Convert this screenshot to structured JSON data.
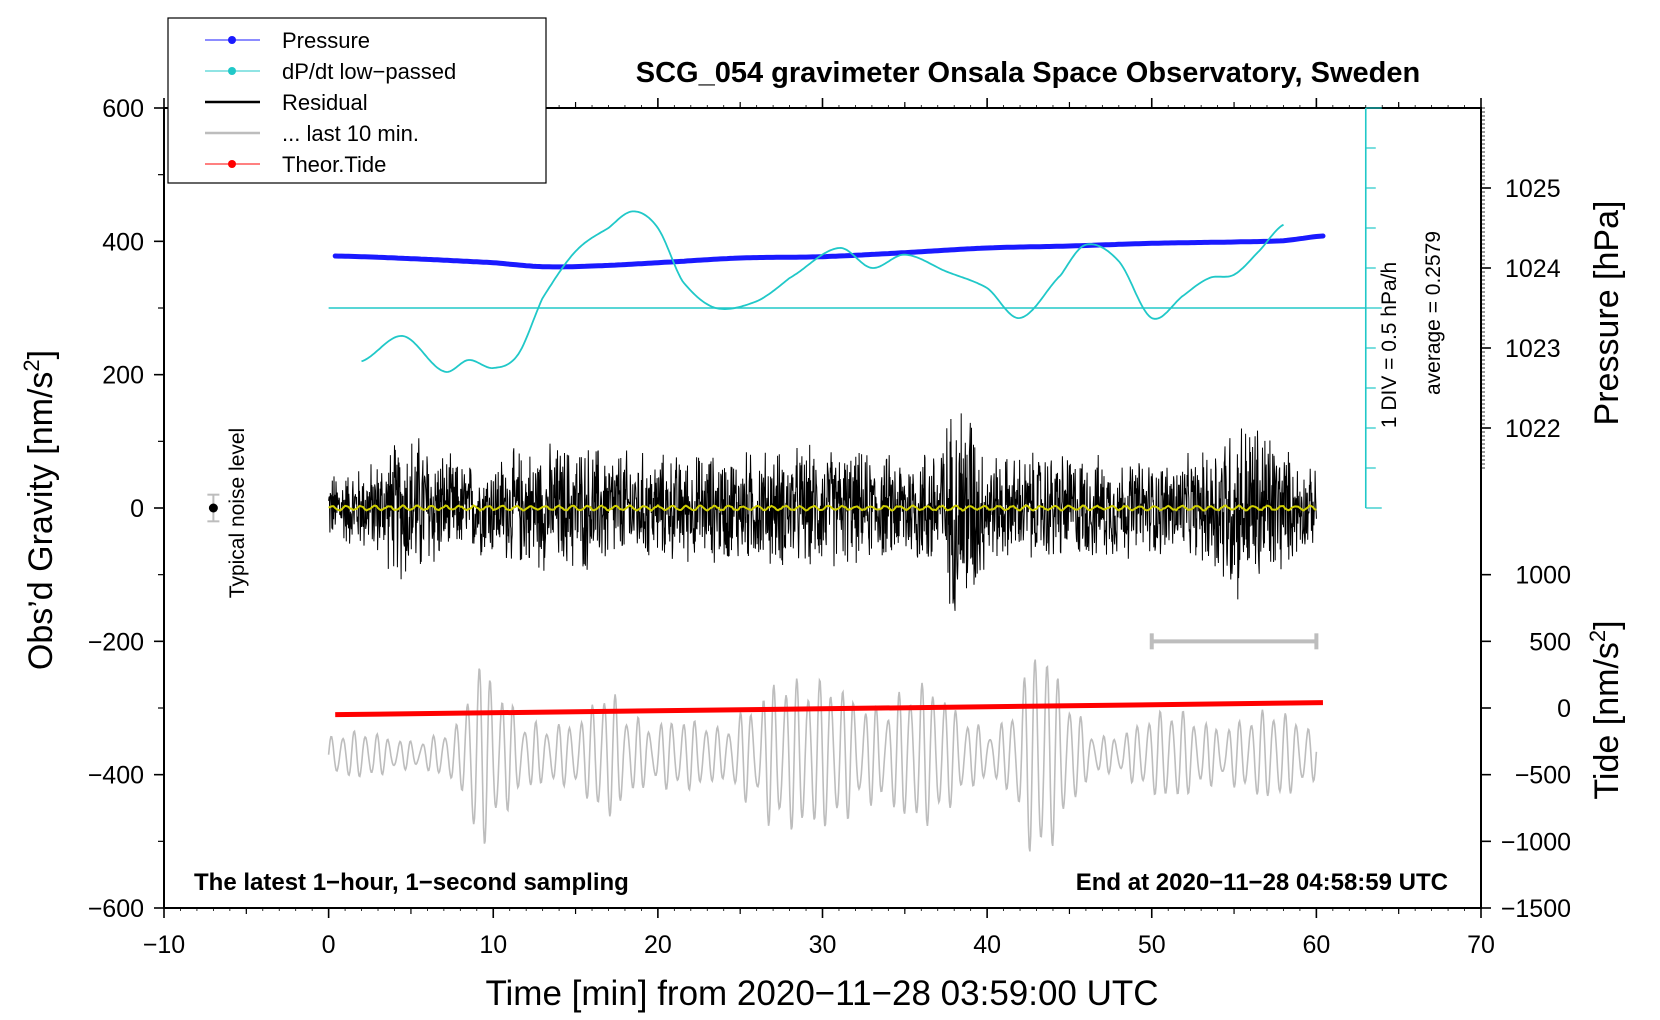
{
  "chart_data": {
    "type": "line",
    "title": "SCG_054 gravimeter Onsala Space Observatory, Sweden",
    "xlabel": "Time [min] from 2020−11−28 03:59:00 UTC",
    "ylabel_left": "Obs’d Gravity [nm/s",
    "ylabel_left_sup": "2",
    "ylabel_left_close": "]",
    "ylabel_pressure": "Pressure [hPa]",
    "ylabel_tide": "Tide [nm/s",
    "ylabel_tide_sup": "2",
    "ylabel_tide_close": "]",
    "xlim": [
      -10,
      70
    ],
    "ylim_left": [
      -600,
      600
    ],
    "x_ticks": [
      -10,
      0,
      10,
      20,
      30,
      40,
      50,
      60,
      70
    ],
    "x_tick_labels": [
      "−10",
      "0",
      "10",
      "20",
      "30",
      "40",
      "50",
      "60",
      "70"
    ],
    "y_ticks_left": [
      -600,
      -400,
      -200,
      0,
      200,
      400,
      600
    ],
    "y_tick_labels_left": [
      "−600",
      "−400",
      "−200",
      "0",
      "200",
      "400",
      "600"
    ],
    "pressure_axis": {
      "ticks": [
        1022,
        1023,
        1024,
        1025
      ],
      "tick_labels": [
        "1022",
        "1023",
        "1024",
        "1025"
      ],
      "gravity_equiv": [
        120,
        240,
        360,
        480
      ]
    },
    "tide_axis": {
      "ticks": [
        -1500,
        -1000,
        -500,
        0,
        500,
        1000
      ],
      "tick_labels": [
        "−1500",
        "−1000",
        "−500",
        "0",
        "500",
        "1000"
      ],
      "gravity_equiv": [
        -600,
        -500,
        -400,
        -300,
        -200,
        -100
      ]
    },
    "legend": {
      "placement": "top-left",
      "entries": [
        {
          "label": "Pressure",
          "color": "#1a1aff",
          "marker": "dot"
        },
        {
          "label": "dP/dt low−passed",
          "color": "#20c8c8",
          "marker": "dot"
        },
        {
          "label": "Residual",
          "color": "#000000",
          "marker": "none"
        },
        {
          "label": "... last 10 min.",
          "color": "#bdbdbd",
          "marker": "none"
        },
        {
          "label": "Theor.Tide",
          "color": "#ff0000",
          "marker": "dot"
        }
      ]
    },
    "series": [
      {
        "name": "Pressure",
        "color": "#1a1aff",
        "x_start": 0.4,
        "x_end": 60.4,
        "x": [
          0.4,
          5,
          10,
          13,
          16,
          20,
          25,
          30,
          35,
          40,
          45,
          50,
          55,
          58,
          60.4
        ],
        "y": [
          378,
          374,
          368,
          362,
          363,
          368,
          375,
          377,
          383,
          390,
          393,
          397,
          399,
          401,
          408
        ]
      },
      {
        "name": "dP/dt low−passed",
        "color": "#20c8c8",
        "x": [
          2,
          4.5,
          7,
          8.5,
          10,
          11.5,
          13,
          15,
          17,
          18.5,
          20,
          21.5,
          23.5,
          26,
          28,
          31,
          33,
          35,
          37.5,
          40,
          42,
          44.5,
          46,
          48,
          50,
          52,
          53.5,
          55,
          56.5,
          58
        ],
        "y": [
          220,
          258,
          205,
          222,
          210,
          230,
          315,
          385,
          420,
          445,
          420,
          340,
          300,
          310,
          345,
          390,
          360,
          380,
          355,
          330,
          285,
          350,
          395,
          370,
          285,
          320,
          345,
          350,
          385,
          425
        ]
      },
      {
        "name": "dP/dt zero line",
        "color": "#20c8c8",
        "x": [
          0,
          63
        ],
        "y": [
          300,
          300
        ]
      },
      {
        "name": "Residual",
        "color": "#000000",
        "x_start": 0,
        "x_end": 60,
        "typical_amplitude": 60,
        "max": 205,
        "min": -205
      },
      {
        "name": "Residual smoothed",
        "color": "#d0d000",
        "y": 0
      },
      {
        "name": "Theor.Tide",
        "color": "#ff0000",
        "x": [
          0.4,
          60.4
        ],
        "y": [
          -310,
          -292
        ]
      },
      {
        "name": "... last 10 min.",
        "color": "#bdbdbd",
        "x_start": 0,
        "x_end": 60,
        "center": -370,
        "typical_amplitude": 50,
        "max": -215,
        "min": -555
      }
    ],
    "bracket": {
      "label": "1 DIV = 0.5 hPa/h",
      "divisions": 10
    },
    "average_label": "average = 0.2579",
    "noise": {
      "label": "Typical noise level",
      "x": -7,
      "y": 0,
      "err": 20
    },
    "last10_bar": {
      "x": [
        50,
        60
      ],
      "y": -200
    },
    "annotation_left": "The latest 1−hour, 1−second sampling",
    "annotation_right": "End at 2020−11−28 04:58:59 UTC"
  }
}
